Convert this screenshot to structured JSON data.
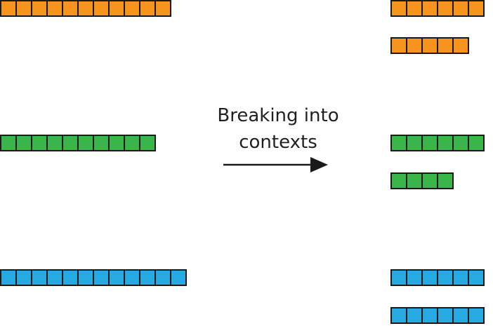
{
  "caption": {
    "line1": "Breaking into",
    "line2": "contexts"
  },
  "colors": {
    "orange": "#f7941e",
    "green": "#39b54a",
    "blue": "#27aae1",
    "outline": "#1a1a1a",
    "text": "#231f20"
  },
  "sequences": {
    "input": [
      {
        "color": "orange",
        "cells": 11
      },
      {
        "color": "green",
        "cells": 10
      },
      {
        "color": "blue",
        "cells": 12
      }
    ],
    "output": [
      {
        "color": "orange",
        "cells": 6
      },
      {
        "color": "orange",
        "cells": 5
      },
      {
        "color": "green",
        "cells": 6
      },
      {
        "color": "green",
        "cells": 4
      },
      {
        "color": "blue",
        "cells": 6
      },
      {
        "color": "blue",
        "cells": 6
      }
    ]
  },
  "icons": {
    "arrow": "arrow-right-icon"
  }
}
